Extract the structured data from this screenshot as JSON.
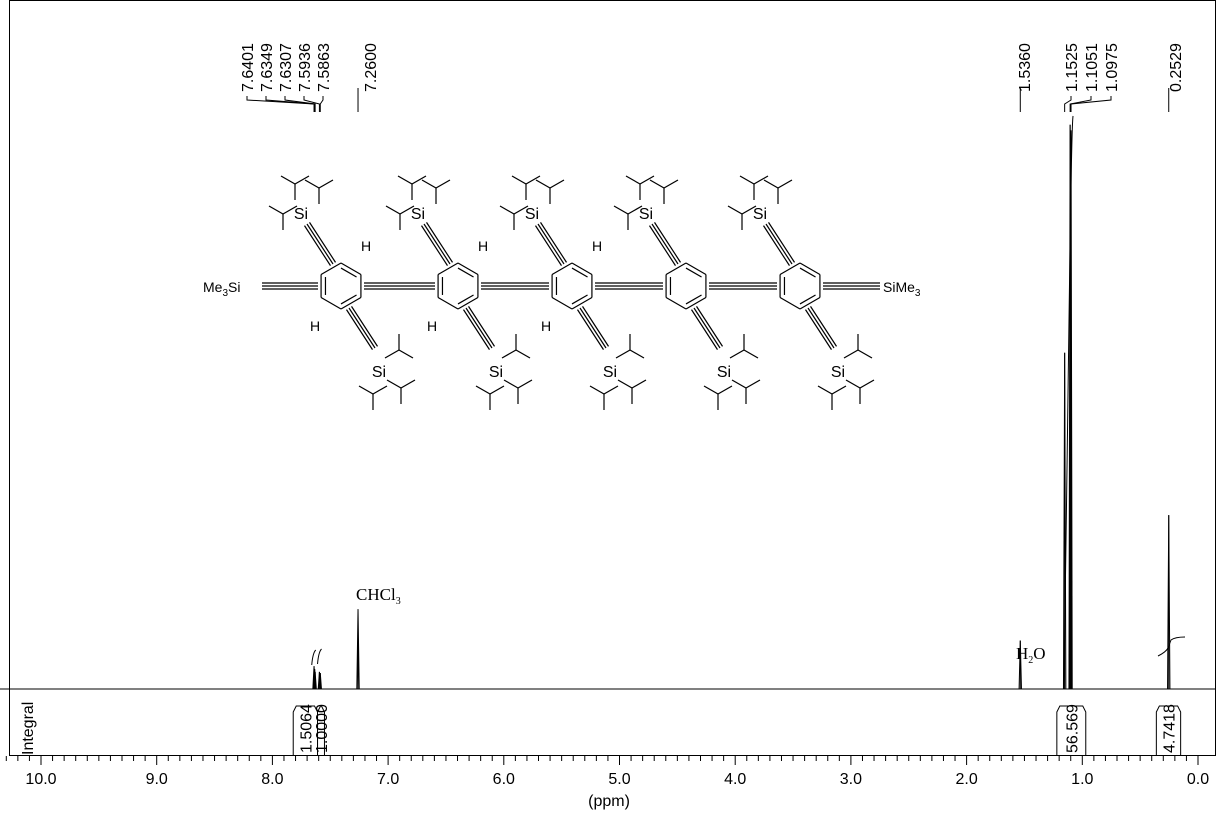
{
  "chart_data": {
    "type": "line",
    "title": "",
    "xlabel": "(ppm)",
    "ylabel": "",
    "xlim": [
      10.4,
      0.0
    ],
    "x_reversed": true,
    "major_ticks": [
      "10.0",
      "9.0",
      "8.0",
      "7.0",
      "6.0",
      "5.0",
      "4.0",
      "3.0",
      "2.0",
      "1.0",
      "0.0"
    ],
    "integral_row_label": "Integral",
    "peaks": [
      {
        "ppm": 7.6401,
        "label": "7.6401",
        "height": 0.04
      },
      {
        "ppm": 7.6349,
        "label": "7.6349",
        "height": 0.035
      },
      {
        "ppm": 7.6307,
        "label": "7.6307",
        "height": 0.03
      },
      {
        "ppm": 7.5936,
        "label": "7.5936",
        "height": 0.03
      },
      {
        "ppm": 7.5863,
        "label": "7.5863",
        "height": 0.028
      },
      {
        "ppm": 7.26,
        "label": "7.2600",
        "height": 0.14
      },
      {
        "ppm": 1.536,
        "label": "1.5360",
        "height": 0.085
      },
      {
        "ppm": 1.1525,
        "label": "1.1525",
        "height": 0.59
      },
      {
        "ppm": 1.1051,
        "label": "1.1051",
        "height": 0.99
      },
      {
        "ppm": 1.0975,
        "label": "1.0975",
        "height": 0.98
      },
      {
        "ppm": 0.2529,
        "label": "0.2529",
        "height": 0.305
      }
    ],
    "integrals": [
      {
        "from": 7.82,
        "to": 7.61,
        "value": "1.5064"
      },
      {
        "from": 7.61,
        "to": 7.55,
        "value": "1.0000"
      },
      {
        "from": 1.22,
        "to": 0.97,
        "value": "56.569"
      },
      {
        "from": 0.36,
        "to": 0.15,
        "value": "4.7418"
      }
    ],
    "annotations": [
      {
        "text": "CHCl",
        "sub": "3",
        "ppm": 7.26
      },
      {
        "text": "H",
        "sub": "2",
        "tail": "O",
        "ppm": 1.53
      }
    ]
  },
  "molecule": {
    "end_groups": [
      {
        "text": "Me",
        "sub": "3",
        "tail": "Si"
      },
      {
        "text": "SiMe",
        "sub": "3",
        "tail": ""
      }
    ],
    "atom_si": "Si",
    "atom_h": "H"
  }
}
